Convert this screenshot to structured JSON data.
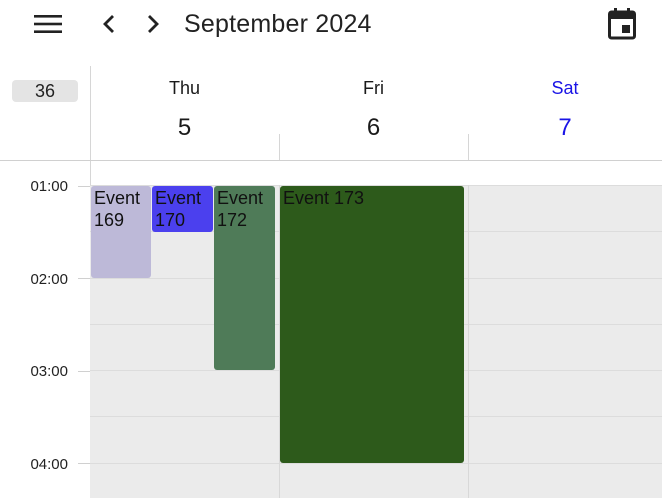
{
  "header": {
    "title": "September 2024",
    "menu_icon": "menu-icon",
    "prev_icon": "chevron-left-icon",
    "next_icon": "chevron-right-icon",
    "today_icon": "calendar-today-icon"
  },
  "week": {
    "number": "36"
  },
  "days": [
    {
      "name": "Thu",
      "number": "5"
    },
    {
      "name": "Fri",
      "number": "6"
    },
    {
      "name": "Sat",
      "number": "7"
    }
  ],
  "times": [
    "01:00",
    "02:00",
    "03:00",
    "04:00"
  ],
  "events": [
    {
      "label": "Event 169",
      "line1": "Event",
      "line2": "169",
      "color": "#bdb9d8"
    },
    {
      "label": "Event 170",
      "line1": "Event",
      "line2": "170",
      "color": "#4b40ee"
    },
    {
      "label": "Event 172",
      "line1": "Event",
      "line2": "172",
      "color": "#4f7b58"
    },
    {
      "label": "Event 173",
      "line1": "Event 173",
      "line2": "",
      "color": "#2d5a1b"
    }
  ],
  "colors": {
    "saturday": "#1a14e6",
    "grid_bg": "#ebebeb"
  }
}
